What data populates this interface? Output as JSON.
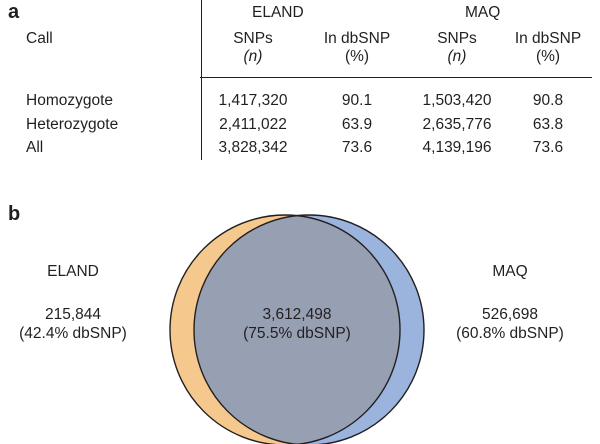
{
  "panel_a": {
    "letter": "a",
    "group_headers": [
      "ELAND",
      "MAQ"
    ],
    "call_header": "Call",
    "col_headers": [
      {
        "line1": "SNPs",
        "line2": "(n)"
      },
      {
        "line1": "In dbSNP",
        "line2": "(%)"
      },
      {
        "line1": "SNPs",
        "line2": "(n)"
      },
      {
        "line1": "In dbSNP",
        "line2": "(%)"
      }
    ],
    "rows": [
      {
        "label": "Homozygote",
        "values": [
          "1,417,320",
          "90.1",
          "1,503,420",
          "90.8"
        ]
      },
      {
        "label": "Heterozygote",
        "values": [
          "2,411,022",
          "63.9",
          "2,635,776",
          "63.8"
        ]
      },
      {
        "label": "All",
        "values": [
          "3,828,342",
          "73.6",
          "4,139,196",
          "73.6"
        ]
      }
    ]
  },
  "panel_b": {
    "letter": "b",
    "left": {
      "name": "ELAND",
      "count": "215,844",
      "note": "(42.4% dbSNP)"
    },
    "center": {
      "count": "3,612,498",
      "note": "(75.5% dbSNP)"
    },
    "right": {
      "name": "MAQ",
      "count": "526,698",
      "note": "(60.8% dbSNP)"
    },
    "colors": {
      "eland_fill": "#f5c98e",
      "maq_fill": "#9ab4dd",
      "overlap_fill": "#97a0b3",
      "outline": "#231f20"
    }
  }
}
